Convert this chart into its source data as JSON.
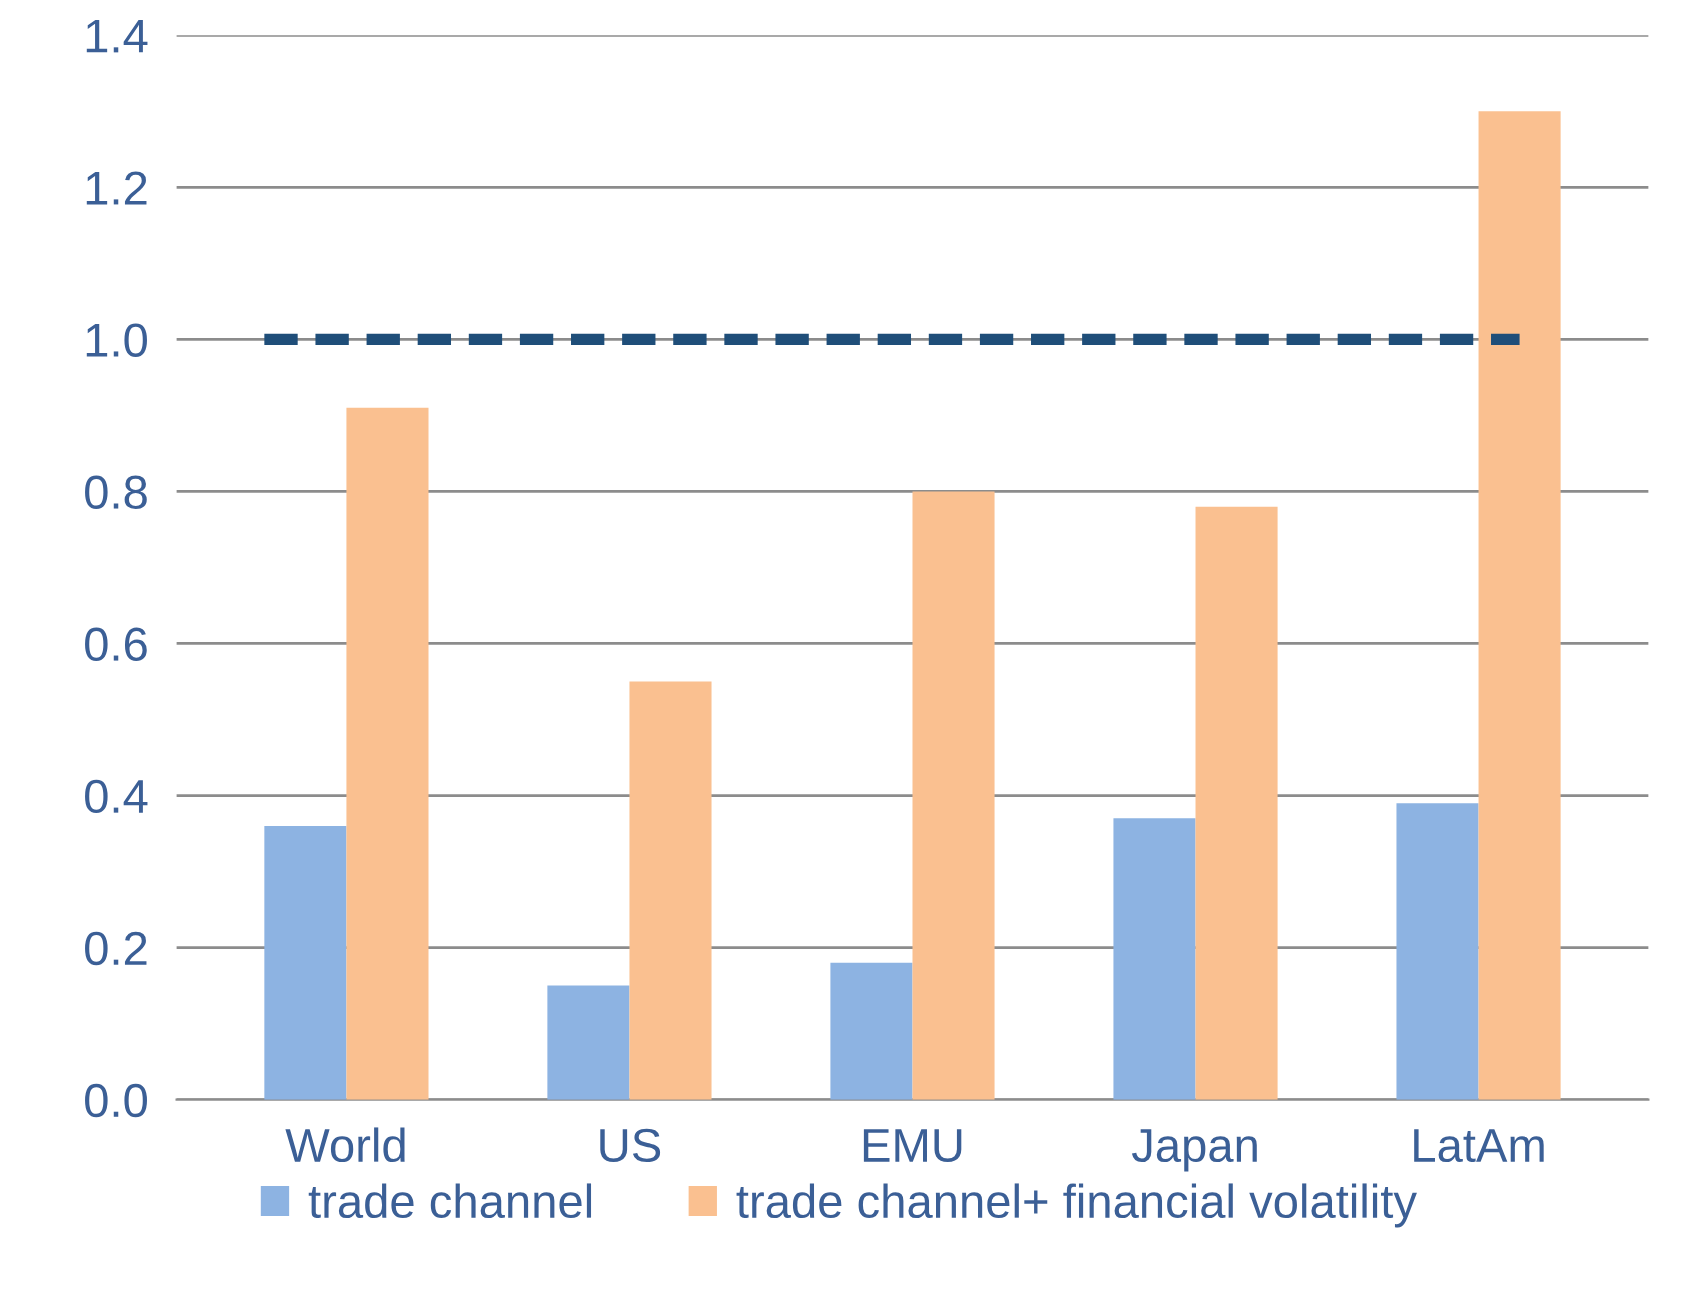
{
  "chart_data": {
    "type": "bar",
    "categories": [
      "World",
      "US",
      "EMU",
      "Japan",
      "LatAm"
    ],
    "series": [
      {
        "name": "trade channel",
        "color": "#8db3e2",
        "values": [
          0.36,
          0.15,
          0.18,
          0.37,
          0.39
        ]
      },
      {
        "name": "trade channel+ financial volatility",
        "color": "#fac090",
        "values": [
          0.91,
          0.55,
          0.8,
          0.78,
          1.3
        ]
      }
    ],
    "ylim": [
      0,
      1.4
    ],
    "yticks": [
      {
        "value": 0,
        "label": "0.0"
      },
      {
        "value": 0.2,
        "label": "0.2"
      },
      {
        "value": 0.4,
        "label": "0.4"
      },
      {
        "value": 0.6,
        "label": "0.6"
      },
      {
        "value": 0.8,
        "label": "0.8"
      },
      {
        "value": 1.0,
        "label": "1.0"
      },
      {
        "value": 1.2,
        "label": "1.2"
      },
      {
        "value": 1.4,
        "label": "1.4"
      }
    ],
    "ref_lines": [
      {
        "axis": "y",
        "value": 1.0,
        "label": null,
        "color": "#1f4e79",
        "line_style": "dashed"
      }
    ],
    "grid": "y",
    "legend": "bottom"
  }
}
